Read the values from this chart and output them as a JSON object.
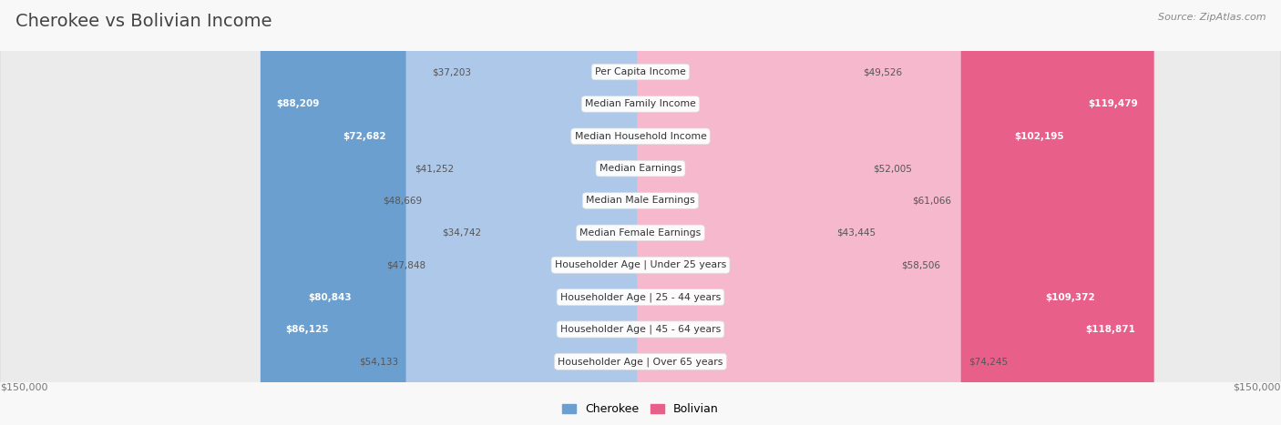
{
  "title": "Cherokee vs Bolivian Income",
  "source": "Source: ZipAtlas.com",
  "categories": [
    "Per Capita Income",
    "Median Family Income",
    "Median Household Income",
    "Median Earnings",
    "Median Male Earnings",
    "Median Female Earnings",
    "Householder Age | Under 25 years",
    "Householder Age | 25 - 44 years",
    "Householder Age | 45 - 64 years",
    "Householder Age | Over 65 years"
  ],
  "cherokee": [
    37203,
    88209,
    72682,
    41252,
    48669,
    34742,
    47848,
    80843,
    86125,
    54133
  ],
  "bolivian": [
    49526,
    119479,
    102195,
    52005,
    61066,
    43445,
    58506,
    109372,
    118871,
    74245
  ],
  "cherokee_light": "#adc8e8",
  "cherokee_strong": "#6b9fcf",
  "bolivian_light": "#f5b8cc",
  "bolivian_strong": "#e8608a",
  "background_color": "#f8f8f8",
  "row_light": "#ffffff",
  "row_dark": "#ebebeb",
  "max_value": 150000,
  "legend_cherokee": "Cherokee",
  "legend_bolivian": "Bolivian",
  "axis_label_left": "$150,000",
  "axis_label_right": "$150,000",
  "strong_threshold": 70000,
  "label_inside_threshold_ch": 70000,
  "label_inside_threshold_bo": 90000
}
